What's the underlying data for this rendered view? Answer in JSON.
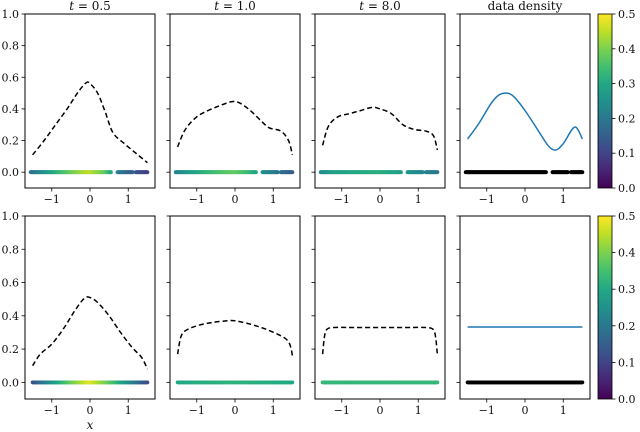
{
  "chart_data": {
    "type": "line",
    "grid": false,
    "xlabel": "x",
    "xlim": [
      -1.7,
      1.7
    ],
    "ylim": [
      -0.1,
      1.0
    ],
    "x_ticks": [
      -1,
      0,
      1
    ],
    "y_ticks": [
      0.0,
      0.2,
      0.4,
      0.6,
      0.8,
      1.0
    ],
    "x_tick_labels": [
      "−1",
      "0",
      "1"
    ],
    "y_tick_labels": [
      "0.0",
      "0.2",
      "0.4",
      "0.6",
      "0.8",
      "1.0"
    ],
    "colorbar": {
      "colormap": "viridis",
      "range": [
        0.0,
        0.5
      ],
      "ticks": [
        0.0,
        0.1,
        0.2,
        0.3,
        0.4,
        0.5
      ],
      "tick_labels": [
        "0.0",
        "0.1",
        "0.2",
        "0.3",
        "0.4",
        "0.5"
      ]
    },
    "column_titles": [
      "t = 0.5",
      "t = 1.0",
      "t = 8.0",
      "data density"
    ],
    "rows": [
      {
        "panels": [
          {
            "title_var": "t",
            "title_value": "0.5",
            "line_style": "dashed",
            "line_color": "#000000",
            "x": [
              -1.5,
              -1.2,
              -0.9,
              -0.6,
              -0.3,
              -0.1,
              0.0,
              0.2,
              0.4,
              0.6,
              0.9,
              1.2,
              1.5
            ],
            "y": [
              0.11,
              0.2,
              0.3,
              0.4,
              0.51,
              0.565,
              0.56,
              0.5,
              0.38,
              0.25,
              0.18,
              0.12,
              0.06
            ]
          },
          {
            "title_var": "t",
            "title_value": "1.0",
            "line_style": "dashed",
            "line_color": "#000000",
            "x": [
              -1.5,
              -1.3,
              -1.0,
              -0.7,
              -0.4,
              -0.1,
              0.1,
              0.4,
              0.7,
              0.9,
              1.2,
              1.4,
              1.5
            ],
            "y": [
              0.16,
              0.27,
              0.35,
              0.39,
              0.42,
              0.445,
              0.44,
              0.39,
              0.32,
              0.28,
              0.26,
              0.2,
              0.11
            ]
          },
          {
            "title_var": "t",
            "title_value": "8.0",
            "line_style": "dashed",
            "line_color": "#000000",
            "x": [
              -1.5,
              -1.35,
              -1.1,
              -0.8,
              -0.5,
              -0.2,
              0.0,
              0.3,
              0.6,
              0.9,
              1.2,
              1.4,
              1.5
            ],
            "y": [
              0.17,
              0.29,
              0.35,
              0.37,
              0.39,
              0.41,
              0.4,
              0.37,
              0.3,
              0.27,
              0.26,
              0.23,
              0.14
            ]
          },
          {
            "title_var": "",
            "title_value": "data density",
            "line_style": "solid",
            "line_color": "#1f77b4",
            "x": [
              -1.5,
              -1.2,
              -0.9,
              -0.7,
              -0.5,
              -0.3,
              0.0,
              0.3,
              0.6,
              0.8,
              1.0,
              1.3,
              1.5
            ],
            "y": [
              0.21,
              0.31,
              0.43,
              0.485,
              0.5,
              0.48,
              0.39,
              0.28,
              0.17,
              0.14,
              0.18,
              0.285,
              0.21
            ]
          }
        ],
        "scatter": {
          "y": 0.0,
          "segments": [
            [
              -1.55,
              0.55
            ],
            [
              0.72,
              1.12
            ],
            [
              1.2,
              1.5
            ]
          ],
          "colors_by_panel": [
            [
              [
                -1.55,
                0.18
              ],
              [
                -1.2,
                0.25
              ],
              [
                -0.7,
                0.35
              ],
              [
                -0.2,
                0.43
              ],
              [
                0.0,
                0.45
              ],
              [
                0.4,
                0.38
              ],
              [
                0.72,
                0.22
              ],
              [
                1.1,
                0.15
              ],
              [
                1.5,
                0.09
              ]
            ],
            [
              [
                -1.55,
                0.22
              ],
              [
                -1.2,
                0.27
              ],
              [
                -0.7,
                0.33
              ],
              [
                -0.2,
                0.37
              ],
              [
                0.0,
                0.38
              ],
              [
                0.4,
                0.33
              ],
              [
                0.72,
                0.25
              ],
              [
                1.1,
                0.2
              ],
              [
                1.5,
                0.15
              ]
            ],
            [
              [
                -1.55,
                0.24
              ],
              [
                -1.2,
                0.28
              ],
              [
                -0.7,
                0.3
              ],
              [
                -0.2,
                0.31
              ],
              [
                0.0,
                0.31
              ],
              [
                0.4,
                0.29
              ],
              [
                0.72,
                0.26
              ],
              [
                1.1,
                0.23
              ],
              [
                1.5,
                0.2
              ]
            ],
            "black"
          ]
        }
      },
      {
        "panels": [
          {
            "title_var": "",
            "title_value": "",
            "line_style": "dashed",
            "line_color": "#000000",
            "x": [
              -1.5,
              -1.3,
              -1.0,
              -0.7,
              -0.4,
              -0.15,
              0.0,
              0.2,
              0.5,
              0.8,
              1.1,
              1.35,
              1.5
            ],
            "y": [
              0.1,
              0.17,
              0.23,
              0.32,
              0.43,
              0.505,
              0.51,
              0.48,
              0.4,
              0.3,
              0.21,
              0.15,
              0.08
            ]
          },
          {
            "title_var": "",
            "title_value": "",
            "line_style": "dashed",
            "line_color": "#000000",
            "x": [
              -1.5,
              -1.42,
              -1.3,
              -1.0,
              -0.6,
              -0.2,
              0.0,
              0.4,
              0.8,
              1.2,
              1.38,
              1.46,
              1.5
            ],
            "y": [
              0.17,
              0.27,
              0.31,
              0.34,
              0.36,
              0.37,
              0.37,
              0.35,
              0.32,
              0.28,
              0.25,
              0.21,
              0.16
            ]
          },
          {
            "title_var": "",
            "title_value": "",
            "line_style": "dashed",
            "line_color": "#000000",
            "x": [
              -1.5,
              -1.45,
              -1.38,
              -1.2,
              -0.8,
              -0.4,
              0.0,
              0.4,
              0.8,
              1.2,
              1.38,
              1.45,
              1.5
            ],
            "y": [
              0.17,
              0.28,
              0.32,
              0.33,
              0.33,
              0.33,
              0.33,
              0.33,
              0.33,
              0.33,
              0.32,
              0.28,
              0.17
            ]
          },
          {
            "title_var": "",
            "title_value": "",
            "line_style": "solid",
            "line_color": "#1f77b4",
            "x": [
              -1.5,
              1.5
            ],
            "y": [
              0.333,
              0.333
            ]
          }
        ],
        "scatter": {
          "y": 0.0,
          "segments": [
            [
              -1.5,
              1.5
            ]
          ],
          "colors_by_panel": [
            [
              [
                -1.5,
                0.12
              ],
              [
                -1.0,
                0.25
              ],
              [
                -0.5,
                0.38
              ],
              [
                0.0,
                0.48
              ],
              [
                0.5,
                0.38
              ],
              [
                1.0,
                0.25
              ],
              [
                1.5,
                0.12
              ]
            ],
            [
              [
                -1.5,
                0.3
              ],
              [
                0.0,
                0.32
              ],
              [
                1.5,
                0.3
              ]
            ],
            [
              [
                -1.5,
                0.33
              ],
              [
                0.0,
                0.33
              ],
              [
                1.5,
                0.33
              ]
            ],
            "black"
          ]
        }
      }
    ]
  }
}
